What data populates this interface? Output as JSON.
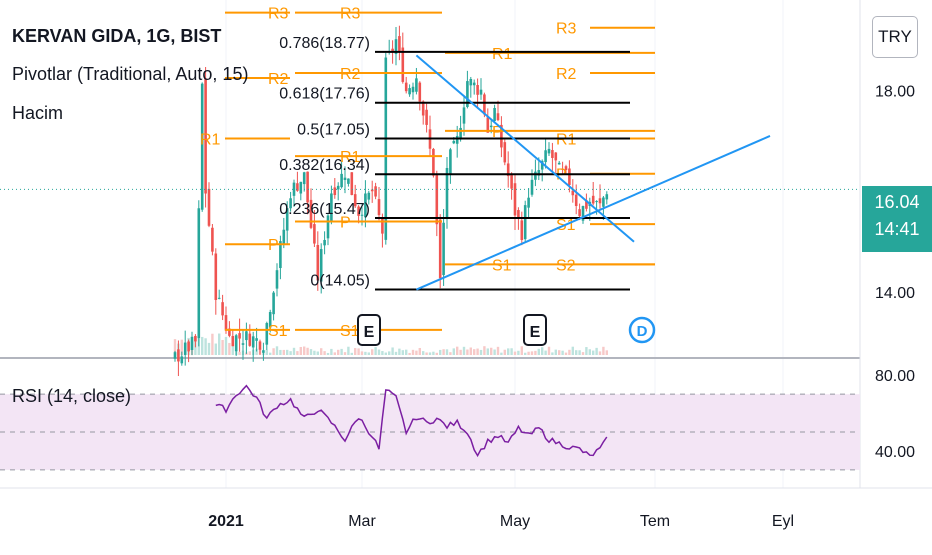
{
  "header": {
    "symbol_title": "KERVAN GIDA, 1G, BIST",
    "pivots_legend": "Pivotlar (Traditional, Auto, 15)",
    "volume_legend": "Hacim",
    "currency": "TRY"
  },
  "last_price": {
    "price": "16.04",
    "countdown": "14:41"
  },
  "colors": {
    "up": "#26a69a",
    "down": "#ef5350",
    "pivot": "#ff9800",
    "fib": "#000000",
    "trendline": "#2196f3",
    "rsi": "#7b1fa2",
    "rsi_band": "#f3e5f5",
    "event": "#2962ff"
  },
  "chart_data": [
    {
      "type": "candlestick",
      "title": "KERVAN GIDA, 1G, BIST",
      "x_ticks": [
        "2021",
        "Mar",
        "May",
        "Tem",
        "Eyl"
      ],
      "y_ticks": [
        "18.00",
        "14.00"
      ],
      "ylim": [
        12.75,
        19.8
      ],
      "ohlc_anchors": [
        {
          "i": 0,
          "c": 12.7
        },
        {
          "i": 6,
          "c": 13.0
        },
        {
          "i": 8,
          "c": 18.1
        },
        {
          "i": 9,
          "c": 16.0
        },
        {
          "i": 12,
          "c": 14.0
        },
        {
          "i": 16,
          "c": 13.1
        },
        {
          "i": 22,
          "c": 13.1
        },
        {
          "i": 26,
          "c": 13.0
        },
        {
          "i": 30,
          "c": 14.5
        },
        {
          "i": 34,
          "c": 16.0
        },
        {
          "i": 38,
          "c": 16.3
        },
        {
          "i": 42,
          "c": 14.3
        },
        {
          "i": 46,
          "c": 16.0
        },
        {
          "i": 50,
          "c": 16.4
        },
        {
          "i": 54,
          "c": 15.6
        },
        {
          "i": 58,
          "c": 16.0
        },
        {
          "i": 61,
          "c": 15.2
        },
        {
          "i": 62,
          "c": 18.5
        },
        {
          "i": 65,
          "c": 19.0
        },
        {
          "i": 68,
          "c": 18.0
        },
        {
          "i": 71,
          "c": 18.3
        },
        {
          "i": 74,
          "c": 17.2
        },
        {
          "i": 76,
          "c": 16.4
        },
        {
          "i": 78,
          "c": 14.2
        },
        {
          "i": 80,
          "c": 16.5
        },
        {
          "i": 83,
          "c": 17.0
        },
        {
          "i": 86,
          "c": 18.2
        },
        {
          "i": 90,
          "c": 18.0
        },
        {
          "i": 92,
          "c": 17.2
        },
        {
          "i": 94,
          "c": 17.6
        },
        {
          "i": 96,
          "c": 16.9
        },
        {
          "i": 98,
          "c": 16.3
        },
        {
          "i": 100,
          "c": 15.6
        },
        {
          "i": 102,
          "c": 15.2
        },
        {
          "i": 104,
          "c": 16.0
        },
        {
          "i": 107,
          "c": 16.4
        },
        {
          "i": 110,
          "c": 16.8
        },
        {
          "i": 113,
          "c": 16.4
        },
        {
          "i": 116,
          "c": 16.2
        },
        {
          "i": 119,
          "c": 15.6
        },
        {
          "i": 122,
          "c": 15.8
        },
        {
          "i": 125,
          "c": 15.7
        },
        {
          "i": 127,
          "c": 16.04
        }
      ],
      "pivot_levels": [
        {
          "label": "R3",
          "period": 1,
          "value": 19.55
        },
        {
          "label": "R2",
          "period": 1,
          "value": 18.25
        },
        {
          "label": "R1",
          "period": 1,
          "value": 17.05
        },
        {
          "label": "P",
          "period": 1,
          "value": 14.95
        },
        {
          "label": "S1",
          "period": 1,
          "value": 13.25
        },
        {
          "label": "R3",
          "period": 2,
          "value": 19.55
        },
        {
          "label": "R2",
          "period": 2,
          "value": 18.35
        },
        {
          "label": "R1",
          "period": 2,
          "value": 16.7
        },
        {
          "label": "P",
          "period": 2,
          "value": 15.4
        },
        {
          "label": "S1",
          "period": 2,
          "value": 13.25
        },
        {
          "label": "R1",
          "period": 3,
          "value": 18.75
        },
        {
          "label": "P",
          "period": 3,
          "value": 17.2
        },
        {
          "label": "S1",
          "period": 3,
          "value": 14.55
        },
        {
          "label": "R3",
          "period": 4,
          "value": 19.25
        },
        {
          "label": "R2",
          "period": 4,
          "value": 18.35
        },
        {
          "label": "R1",
          "period": 4,
          "value": 17.05
        },
        {
          "label": "P",
          "period": 4,
          "value": 16.35
        },
        {
          "label": "S1",
          "period": 4,
          "value": 15.35
        },
        {
          "label": "S2",
          "period": 4,
          "value": 14.55
        }
      ],
      "fib_levels": [
        {
          "label": "0.786(18.77)",
          "value": 18.77
        },
        {
          "label": "0.618(17.76)",
          "value": 17.76
        },
        {
          "label": "0.5(17.05)",
          "value": 17.05
        },
        {
          "label": "0.382(16.34)",
          "value": 16.34
        },
        {
          "label": "0.236(15.47)",
          "value": 15.47
        },
        {
          "label": "0(14.05)",
          "value": 14.05
        }
      ],
      "events": [
        "E",
        "E",
        "D"
      ]
    },
    {
      "type": "line",
      "title": "RSI (14, close)",
      "y_ticks": [
        "80.00",
        "40.00"
      ],
      "ylim": [
        22,
        87
      ],
      "band": [
        30,
        70
      ],
      "midline": 50,
      "rsi_anchors": [
        {
          "i": 12,
          "v": 64
        },
        {
          "i": 15,
          "v": 62
        },
        {
          "i": 18,
          "v": 70
        },
        {
          "i": 21,
          "v": 74
        },
        {
          "i": 24,
          "v": 68
        },
        {
          "i": 27,
          "v": 57
        },
        {
          "i": 30,
          "v": 64
        },
        {
          "i": 34,
          "v": 67
        },
        {
          "i": 38,
          "v": 57
        },
        {
          "i": 42,
          "v": 62
        },
        {
          "i": 46,
          "v": 55
        },
        {
          "i": 50,
          "v": 46
        },
        {
          "i": 54,
          "v": 58
        },
        {
          "i": 58,
          "v": 48
        },
        {
          "i": 60,
          "v": 41
        },
        {
          "i": 62,
          "v": 72
        },
        {
          "i": 65,
          "v": 68
        },
        {
          "i": 68,
          "v": 50
        },
        {
          "i": 71,
          "v": 58
        },
        {
          "i": 74,
          "v": 55
        },
        {
          "i": 77,
          "v": 57
        },
        {
          "i": 80,
          "v": 53
        },
        {
          "i": 83,
          "v": 55
        },
        {
          "i": 86,
          "v": 50
        },
        {
          "i": 89,
          "v": 38
        },
        {
          "i": 92,
          "v": 45
        },
        {
          "i": 95,
          "v": 48
        },
        {
          "i": 98,
          "v": 44
        },
        {
          "i": 101,
          "v": 52
        },
        {
          "i": 104,
          "v": 48
        },
        {
          "i": 107,
          "v": 52
        },
        {
          "i": 110,
          "v": 46
        },
        {
          "i": 113,
          "v": 44
        },
        {
          "i": 116,
          "v": 42
        },
        {
          "i": 119,
          "v": 41
        },
        {
          "i": 122,
          "v": 37
        },
        {
          "i": 125,
          "v": 41
        },
        {
          "i": 127,
          "v": 46
        }
      ]
    }
  ]
}
